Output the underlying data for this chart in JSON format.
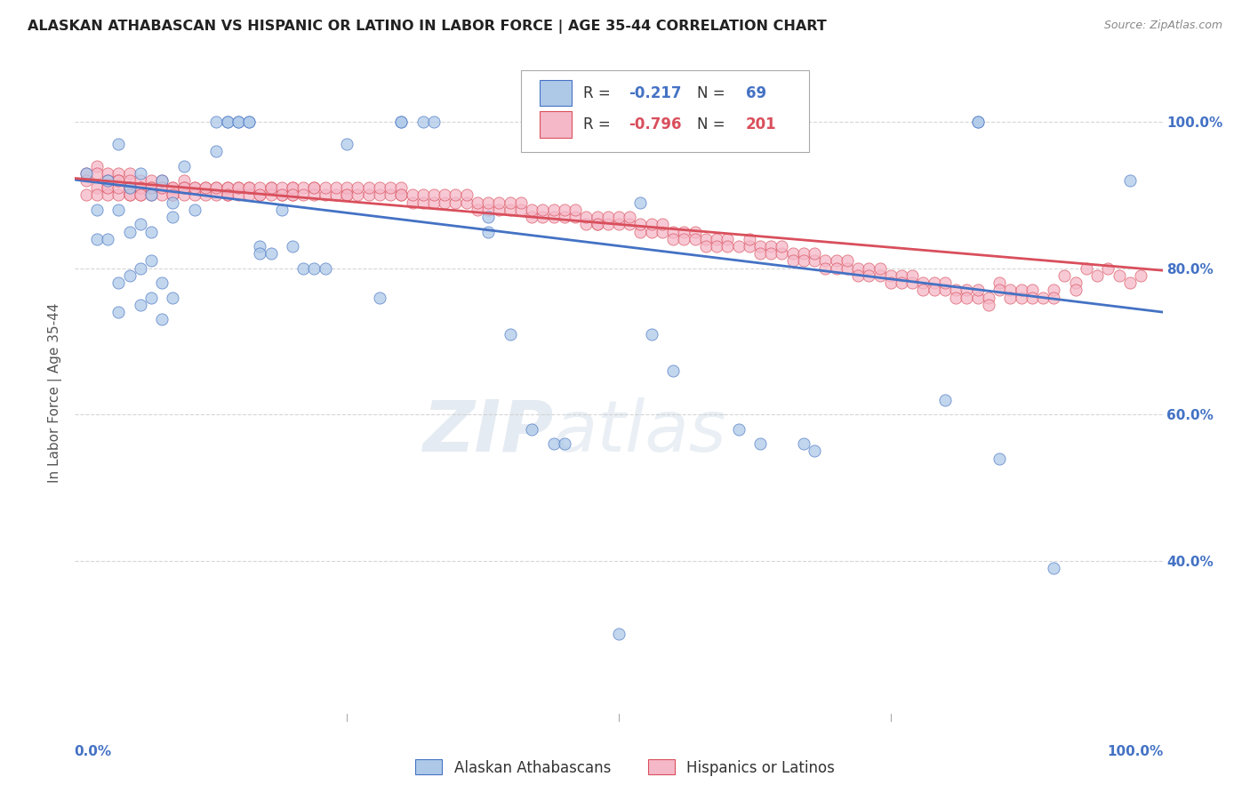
{
  "title": "ALASKAN ATHABASCAN VS HISPANIC OR LATINO IN LABOR FORCE | AGE 35-44 CORRELATION CHART",
  "source": "Source: ZipAtlas.com",
  "ylabel": "In Labor Force | Age 35-44",
  "ytick_labels": [
    "100.0%",
    "80.0%",
    "60.0%",
    "40.0%"
  ],
  "ytick_values": [
    1.0,
    0.8,
    0.6,
    0.4
  ],
  "xlim": [
    0.0,
    1.0
  ],
  "ylim": [
    0.18,
    1.08
  ],
  "blue_R": -0.217,
  "blue_N": 69,
  "pink_R": -0.796,
  "pink_N": 201,
  "blue_color": "#aec9e8",
  "pink_color": "#f5b8c8",
  "blue_line_color": "#4472c4",
  "pink_line_color": "#d94f5c",
  "blue_scatter": [
    [
      0.01,
      0.93
    ],
    [
      0.02,
      0.88
    ],
    [
      0.02,
      0.84
    ],
    [
      0.03,
      0.92
    ],
    [
      0.03,
      0.84
    ],
    [
      0.04,
      0.97
    ],
    [
      0.04,
      0.88
    ],
    [
      0.04,
      0.78
    ],
    [
      0.04,
      0.74
    ],
    [
      0.05,
      0.91
    ],
    [
      0.05,
      0.85
    ],
    [
      0.05,
      0.79
    ],
    [
      0.06,
      0.93
    ],
    [
      0.06,
      0.86
    ],
    [
      0.06,
      0.8
    ],
    [
      0.06,
      0.75
    ],
    [
      0.07,
      0.9
    ],
    [
      0.07,
      0.85
    ],
    [
      0.07,
      0.81
    ],
    [
      0.07,
      0.76
    ],
    [
      0.08,
      0.92
    ],
    [
      0.08,
      0.78
    ],
    [
      0.08,
      0.73
    ],
    [
      0.09,
      0.89
    ],
    [
      0.09,
      0.87
    ],
    [
      0.09,
      0.76
    ],
    [
      0.1,
      0.94
    ],
    [
      0.11,
      0.88
    ],
    [
      0.13,
      1.0
    ],
    [
      0.13,
      0.96
    ],
    [
      0.14,
      1.0
    ],
    [
      0.14,
      1.0
    ],
    [
      0.15,
      1.0
    ],
    [
      0.15,
      1.0
    ],
    [
      0.16,
      1.0
    ],
    [
      0.16,
      1.0
    ],
    [
      0.17,
      0.83
    ],
    [
      0.17,
      0.82
    ],
    [
      0.18,
      0.82
    ],
    [
      0.19,
      0.88
    ],
    [
      0.2,
      0.83
    ],
    [
      0.21,
      0.8
    ],
    [
      0.22,
      0.8
    ],
    [
      0.23,
      0.8
    ],
    [
      0.25,
      0.97
    ],
    [
      0.28,
      0.76
    ],
    [
      0.3,
      1.0
    ],
    [
      0.3,
      1.0
    ],
    [
      0.32,
      1.0
    ],
    [
      0.33,
      1.0
    ],
    [
      0.38,
      0.87
    ],
    [
      0.38,
      0.85
    ],
    [
      0.4,
      0.71
    ],
    [
      0.42,
      0.58
    ],
    [
      0.44,
      0.56
    ],
    [
      0.45,
      0.56
    ],
    [
      0.5,
      0.3
    ],
    [
      0.52,
      0.89
    ],
    [
      0.53,
      0.71
    ],
    [
      0.55,
      0.66
    ],
    [
      0.61,
      0.58
    ],
    [
      0.63,
      0.56
    ],
    [
      0.67,
      0.56
    ],
    [
      0.68,
      0.55
    ],
    [
      0.8,
      0.62
    ],
    [
      0.83,
      1.0
    ],
    [
      0.83,
      1.0
    ],
    [
      0.85,
      0.54
    ],
    [
      0.9,
      0.39
    ],
    [
      0.97,
      0.92
    ]
  ],
  "pink_scatter": [
    [
      0.01,
      0.93
    ],
    [
      0.01,
      0.9
    ],
    [
      0.01,
      0.92
    ],
    [
      0.02,
      0.94
    ],
    [
      0.02,
      0.91
    ],
    [
      0.02,
      0.93
    ],
    [
      0.02,
      0.9
    ],
    [
      0.03,
      0.93
    ],
    [
      0.03,
      0.91
    ],
    [
      0.03,
      0.92
    ],
    [
      0.03,
      0.9
    ],
    [
      0.03,
      0.91
    ],
    [
      0.04,
      0.93
    ],
    [
      0.04,
      0.92
    ],
    [
      0.04,
      0.9
    ],
    [
      0.04,
      0.91
    ],
    [
      0.04,
      0.92
    ],
    [
      0.05,
      0.93
    ],
    [
      0.05,
      0.91
    ],
    [
      0.05,
      0.92
    ],
    [
      0.05,
      0.9
    ],
    [
      0.05,
      0.91
    ],
    [
      0.05,
      0.9
    ],
    [
      0.06,
      0.92
    ],
    [
      0.06,
      0.91
    ],
    [
      0.06,
      0.9
    ],
    [
      0.06,
      0.91
    ],
    [
      0.06,
      0.9
    ],
    [
      0.07,
      0.92
    ],
    [
      0.07,
      0.91
    ],
    [
      0.07,
      0.9
    ],
    [
      0.07,
      0.91
    ],
    [
      0.08,
      0.92
    ],
    [
      0.08,
      0.91
    ],
    [
      0.08,
      0.9
    ],
    [
      0.08,
      0.91
    ],
    [
      0.09,
      0.91
    ],
    [
      0.09,
      0.9
    ],
    [
      0.09,
      0.91
    ],
    [
      0.09,
      0.9
    ],
    [
      0.1,
      0.92
    ],
    [
      0.1,
      0.91
    ],
    [
      0.1,
      0.9
    ],
    [
      0.1,
      0.91
    ],
    [
      0.11,
      0.91
    ],
    [
      0.11,
      0.9
    ],
    [
      0.11,
      0.91
    ],
    [
      0.12,
      0.91
    ],
    [
      0.12,
      0.9
    ],
    [
      0.12,
      0.91
    ],
    [
      0.13,
      0.91
    ],
    [
      0.13,
      0.9
    ],
    [
      0.13,
      0.91
    ],
    [
      0.14,
      0.91
    ],
    [
      0.14,
      0.9
    ],
    [
      0.14,
      0.91
    ],
    [
      0.14,
      0.9
    ],
    [
      0.15,
      0.91
    ],
    [
      0.15,
      0.9
    ],
    [
      0.15,
      0.91
    ],
    [
      0.16,
      0.91
    ],
    [
      0.16,
      0.9
    ],
    [
      0.16,
      0.91
    ],
    [
      0.17,
      0.9
    ],
    [
      0.17,
      0.91
    ],
    [
      0.17,
      0.9
    ],
    [
      0.18,
      0.91
    ],
    [
      0.18,
      0.9
    ],
    [
      0.18,
      0.91
    ],
    [
      0.19,
      0.9
    ],
    [
      0.19,
      0.91
    ],
    [
      0.19,
      0.9
    ],
    [
      0.2,
      0.91
    ],
    [
      0.2,
      0.9
    ],
    [
      0.2,
      0.91
    ],
    [
      0.2,
      0.9
    ],
    [
      0.21,
      0.91
    ],
    [
      0.21,
      0.9
    ],
    [
      0.22,
      0.91
    ],
    [
      0.22,
      0.9
    ],
    [
      0.22,
      0.91
    ],
    [
      0.23,
      0.9
    ],
    [
      0.23,
      0.91
    ],
    [
      0.24,
      0.9
    ],
    [
      0.24,
      0.91
    ],
    [
      0.25,
      0.9
    ],
    [
      0.25,
      0.91
    ],
    [
      0.25,
      0.9
    ],
    [
      0.26,
      0.9
    ],
    [
      0.26,
      0.91
    ],
    [
      0.27,
      0.9
    ],
    [
      0.27,
      0.91
    ],
    [
      0.28,
      0.9
    ],
    [
      0.28,
      0.91
    ],
    [
      0.29,
      0.9
    ],
    [
      0.29,
      0.91
    ],
    [
      0.3,
      0.9
    ],
    [
      0.3,
      0.91
    ],
    [
      0.3,
      0.9
    ],
    [
      0.31,
      0.89
    ],
    [
      0.31,
      0.9
    ],
    [
      0.32,
      0.89
    ],
    [
      0.32,
      0.9
    ],
    [
      0.33,
      0.89
    ],
    [
      0.33,
      0.9
    ],
    [
      0.34,
      0.89
    ],
    [
      0.34,
      0.9
    ],
    [
      0.35,
      0.89
    ],
    [
      0.35,
      0.9
    ],
    [
      0.36,
      0.89
    ],
    [
      0.36,
      0.9
    ],
    [
      0.37,
      0.88
    ],
    [
      0.37,
      0.89
    ],
    [
      0.38,
      0.88
    ],
    [
      0.38,
      0.89
    ],
    [
      0.39,
      0.88
    ],
    [
      0.39,
      0.89
    ],
    [
      0.4,
      0.88
    ],
    [
      0.4,
      0.89
    ],
    [
      0.41,
      0.88
    ],
    [
      0.41,
      0.89
    ],
    [
      0.42,
      0.87
    ],
    [
      0.42,
      0.88
    ],
    [
      0.43,
      0.87
    ],
    [
      0.43,
      0.88
    ],
    [
      0.44,
      0.87
    ],
    [
      0.44,
      0.88
    ],
    [
      0.45,
      0.87
    ],
    [
      0.45,
      0.88
    ],
    [
      0.46,
      0.87
    ],
    [
      0.46,
      0.88
    ],
    [
      0.47,
      0.86
    ],
    [
      0.47,
      0.87
    ],
    [
      0.48,
      0.86
    ],
    [
      0.48,
      0.87
    ],
    [
      0.48,
      0.86
    ],
    [
      0.49,
      0.86
    ],
    [
      0.49,
      0.87
    ],
    [
      0.5,
      0.86
    ],
    [
      0.5,
      0.87
    ],
    [
      0.51,
      0.86
    ],
    [
      0.51,
      0.87
    ],
    [
      0.52,
      0.85
    ],
    [
      0.52,
      0.86
    ],
    [
      0.53,
      0.85
    ],
    [
      0.53,
      0.86
    ],
    [
      0.54,
      0.85
    ],
    [
      0.54,
      0.86
    ],
    [
      0.55,
      0.85
    ],
    [
      0.55,
      0.84
    ],
    [
      0.56,
      0.85
    ],
    [
      0.56,
      0.84
    ],
    [
      0.57,
      0.85
    ],
    [
      0.57,
      0.84
    ],
    [
      0.58,
      0.84
    ],
    [
      0.58,
      0.83
    ],
    [
      0.59,
      0.84
    ],
    [
      0.59,
      0.83
    ],
    [
      0.6,
      0.84
    ],
    [
      0.6,
      0.83
    ],
    [
      0.61,
      0.83
    ],
    [
      0.62,
      0.83
    ],
    [
      0.62,
      0.84
    ],
    [
      0.63,
      0.83
    ],
    [
      0.63,
      0.82
    ],
    [
      0.64,
      0.83
    ],
    [
      0.64,
      0.82
    ],
    [
      0.65,
      0.82
    ],
    [
      0.65,
      0.83
    ],
    [
      0.66,
      0.82
    ],
    [
      0.66,
      0.81
    ],
    [
      0.67,
      0.82
    ],
    [
      0.67,
      0.81
    ],
    [
      0.68,
      0.81
    ],
    [
      0.68,
      0.82
    ],
    [
      0.69,
      0.81
    ],
    [
      0.69,
      0.8
    ],
    [
      0.7,
      0.81
    ],
    [
      0.7,
      0.8
    ],
    [
      0.71,
      0.8
    ],
    [
      0.71,
      0.81
    ],
    [
      0.72,
      0.8
    ],
    [
      0.72,
      0.79
    ],
    [
      0.73,
      0.8
    ],
    [
      0.73,
      0.79
    ],
    [
      0.74,
      0.79
    ],
    [
      0.74,
      0.8
    ],
    [
      0.75,
      0.79
    ],
    [
      0.75,
      0.78
    ],
    [
      0.76,
      0.79
    ],
    [
      0.76,
      0.78
    ],
    [
      0.77,
      0.78
    ],
    [
      0.77,
      0.79
    ],
    [
      0.78,
      0.78
    ],
    [
      0.78,
      0.77
    ],
    [
      0.79,
      0.78
    ],
    [
      0.79,
      0.77
    ],
    [
      0.8,
      0.77
    ],
    [
      0.8,
      0.78
    ],
    [
      0.81,
      0.77
    ],
    [
      0.81,
      0.76
    ],
    [
      0.82,
      0.77
    ],
    [
      0.82,
      0.76
    ],
    [
      0.83,
      0.76
    ],
    [
      0.83,
      0.77
    ],
    [
      0.84,
      0.76
    ],
    [
      0.84,
      0.75
    ],
    [
      0.85,
      0.78
    ],
    [
      0.85,
      0.77
    ],
    [
      0.86,
      0.77
    ],
    [
      0.86,
      0.76
    ],
    [
      0.87,
      0.76
    ],
    [
      0.87,
      0.77
    ],
    [
      0.88,
      0.77
    ],
    [
      0.88,
      0.76
    ],
    [
      0.89,
      0.76
    ],
    [
      0.9,
      0.77
    ],
    [
      0.9,
      0.76
    ],
    [
      0.91,
      0.79
    ],
    [
      0.92,
      0.78
    ],
    [
      0.92,
      0.77
    ],
    [
      0.93,
      0.8
    ],
    [
      0.94,
      0.79
    ],
    [
      0.95,
      0.8
    ],
    [
      0.96,
      0.79
    ],
    [
      0.97,
      0.78
    ],
    [
      0.98,
      0.79
    ]
  ],
  "watermark_zip": "ZIP",
  "watermark_atlas": "atlas",
  "background_color": "#ffffff",
  "grid_color": "#cccccc",
  "title_color": "#222222",
  "axis_label_color": "#555555",
  "blue_legend_color": "#aec9e8",
  "pink_legend_color": "#f5b8c8"
}
